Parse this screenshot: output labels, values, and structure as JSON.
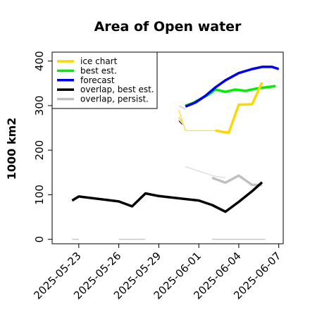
{
  "chart_data": {
    "type": "line",
    "title": "Area of Open water",
    "xlabel": "",
    "ylabel": "1000 km2",
    "ylim": [
      -10,
      420
    ],
    "xlim": [
      "2025-05-21",
      "2025-06-07T08:00"
    ],
    "grid": false,
    "legend_position": "top-left",
    "x_ticks": [
      "2025-05-23",
      "2025-05-26",
      "2025-05-29",
      "2025-06-01",
      "2025-06-04",
      "2025-06-07"
    ],
    "x_tick_colors": [
      "#000000",
      "#000000",
      "#228b22",
      "#000000",
      "#000000",
      "#000000"
    ],
    "y_ticks": [
      0,
      100,
      200,
      300,
      400
    ],
    "series": [
      {
        "name": "ice chart",
        "color": "#ffd700",
        "width": 3.5,
        "x": [
          "2025-06-02T06:00",
          "2025-06-03T06:00",
          "2025-06-04",
          "2025-06-05",
          "2025-06-05T18:00"
        ],
        "y": [
          244,
          239,
          302,
          303,
          352
        ]
      },
      {
        "name": "best est.",
        "color": "#00ee00",
        "width": 3.5,
        "x": [
          "2025-05-31",
          "2025-05-31T12:00",
          "2025-06-01",
          "2025-06-01T18:00",
          "2025-06-02T06:00",
          "2025-06-03",
          "2025-06-03T18:00",
          "2025-06-04T12:00",
          "2025-06-05T06:00",
          "2025-06-06",
          "2025-06-06T18:00"
        ],
        "y": [
          300,
          305,
          313,
          325,
          336,
          331,
          336,
          333,
          338,
          341,
          344
        ]
      },
      {
        "name": "forecast",
        "color": "#0000ee",
        "width": 3.5,
        "x": [
          "2025-05-31",
          "2025-05-31T18:00",
          "2025-06-01T12:00",
          "2025-06-02T06:00",
          "2025-06-03",
          "2025-06-04",
          "2025-06-05",
          "2025-06-05T18:00",
          "2025-06-06T12:00",
          "2025-06-07"
        ],
        "y": [
          298,
          307,
          322,
          341,
          357,
          373,
          382,
          387,
          387,
          382
        ]
      },
      {
        "name": "overlap, best est.",
        "color": "#000000",
        "width": 3.5,
        "x": [
          "2025-05-22T12:00",
          "2025-05-23",
          "2025-05-26",
          "2025-05-27",
          "2025-05-28",
          "2025-05-29",
          "2025-06-01",
          "2025-06-02",
          "2025-06-03",
          "2025-06-04",
          "2025-06-05",
          "2025-06-05T18:00"
        ],
        "y": [
          87,
          96,
          85,
          74,
          103,
          97,
          87,
          77,
          62,
          84,
          108,
          128
        ]
      },
      {
        "name": "overlap, persist.",
        "color": "#c0c0c0",
        "width": 3.5,
        "x": [
          "2025-06-02",
          "2025-06-03",
          "2025-06-04",
          "2025-06-05",
          "2025-06-05T18:00"
        ],
        "y": [
          138,
          127,
          143,
          122,
          122
        ]
      },
      {
        "name": "",
        "color": "#d3d3d3",
        "width": 1,
        "x": [
          "2025-05-31",
          "2025-06-02",
          "2025-06-03"
        ],
        "y": [
          163,
          143,
          138
        ]
      },
      {
        "name": "",
        "color": "#ffd700",
        "width": 1,
        "x": [
          "2025-05-30T12:00",
          "2025-05-31",
          "2025-06-02",
          "2025-06-02T06:00"
        ],
        "y": [
          290,
          244,
          244,
          244
        ]
      },
      {
        "name": "",
        "color": "#000000",
        "width": 1,
        "x": [
          "2025-05-23",
          "2025-05-26"
        ],
        "y": [
          96,
          85
        ]
      },
      {
        "name": "",
        "color": "#000000",
        "width": 1,
        "x": [
          "2025-05-28",
          "2025-06-01"
        ],
        "y": [
          103,
          87
        ]
      },
      {
        "name": "",
        "color": "#000000",
        "width": 1,
        "x": [
          "2025-05-30T12:00",
          "2025-05-30T18:00"
        ],
        "y": [
          266,
          258
        ]
      },
      {
        "name": "",
        "color": "#ffd700",
        "width": 1,
        "x": [
          "2025-05-30T12:00",
          "2025-05-30T18:00"
        ],
        "y": [
          275,
          262
        ]
      },
      {
        "name": "",
        "color": "#c0c0c0",
        "width": 1,
        "x": [
          "2025-05-30T12:00",
          "2025-05-30T18:00"
        ],
        "y": [
          272,
          266
        ]
      },
      {
        "name": "",
        "color": "#c0c0c0",
        "width": 1,
        "x": [
          "2025-05-30T12:00",
          "2025-05-31"
        ],
        "y": [
          300,
          292
        ]
      },
      {
        "name": "",
        "color": "#0000ee",
        "width": 1,
        "x": [
          "2025-05-31",
          "2025-05-31T06:00"
        ],
        "y": [
          299,
          300
        ]
      }
    ],
    "baseline_segments": [
      {
        "color": "#c8c8c8",
        "x": [
          "2025-05-22T12:00",
          "2025-05-23"
        ],
        "y": [
          0,
          0
        ]
      },
      {
        "color": "#c8c8c8",
        "x": [
          "2025-05-26",
          "2025-05-28"
        ],
        "y": [
          0,
          0
        ]
      },
      {
        "color": "#c8c8c8",
        "x": [
          "2025-06-02",
          "2025-06-06"
        ],
        "y": [
          0,
          0
        ]
      }
    ]
  }
}
